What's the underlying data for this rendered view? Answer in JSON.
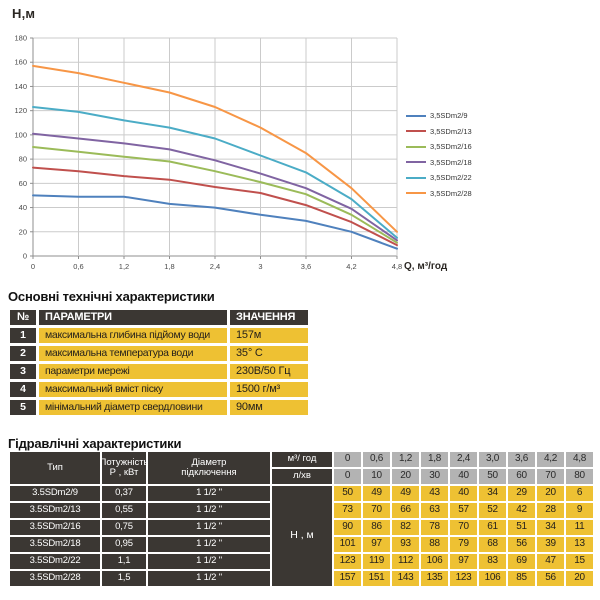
{
  "page": {
    "background": "#ffffff"
  },
  "chart": {
    "y_axis_title": "Н,м",
    "x_axis_title": "Q,  м³/год",
    "series_colors": [
      "#4F81BD",
      "#C0504D",
      "#9BBB59",
      "#8064A2",
      "#4BACC6",
      "#F79646"
    ],
    "grid_color": "#cbcbcb",
    "axis_color": "#8f8f8f"
  },
  "chart_data": {
    "type": "line",
    "title": "",
    "xlabel": "Q,  м³/год",
    "ylabel": "Н,м",
    "grid": true,
    "legend_position": "right",
    "xlim": [
      0,
      4.8
    ],
    "ylim": [
      0,
      180
    ],
    "x": [
      0,
      0.6,
      1.2,
      1.8,
      2.4,
      3.0,
      3.6,
      4.2,
      4.8
    ],
    "x_tick_labels": [
      "0",
      "0,6",
      "1,2",
      "1,8",
      "2,4",
      "3",
      "3,6",
      "4,2",
      "4,8"
    ],
    "y_ticks": [
      0,
      20,
      40,
      60,
      80,
      100,
      120,
      140,
      160,
      180
    ],
    "series": [
      {
        "name": "3,5SDm2/9",
        "values": [
          50,
          49,
          49,
          43,
          40,
          34,
          29,
          20,
          6
        ]
      },
      {
        "name": "3,5SDm2/13",
        "values": [
          73,
          70,
          66,
          63,
          57,
          52,
          42,
          28,
          9
        ]
      },
      {
        "name": "3,5SDm2/16",
        "values": [
          90,
          86,
          82,
          78,
          70,
          61,
          51,
          34,
          11
        ]
      },
      {
        "name": "3,5SDm2/18",
        "values": [
          101,
          97,
          93,
          88,
          79,
          68,
          56,
          39,
          13
        ]
      },
      {
        "name": "3,5SDm2/22",
        "values": [
          123,
          119,
          112,
          106,
          97,
          83,
          69,
          47,
          15
        ]
      },
      {
        "name": "3,5SDm2/28",
        "values": [
          157,
          151,
          143,
          135,
          123,
          106,
          85,
          56,
          20
        ]
      }
    ]
  },
  "tech_table": {
    "title": "Основні технічні характеристики",
    "headers": [
      "№",
      "ПАРАМЕТРИ",
      "ЗНАЧЕННЯ"
    ],
    "rows": [
      {
        "num": "1",
        "param": "максимальна глибина підйому води",
        "value": "157м"
      },
      {
        "num": "2",
        "param": "максимальна температура води",
        "value": "35° С"
      },
      {
        "num": "3",
        "param": "параметри мережі",
        "value": "230В/50 Гц"
      },
      {
        "num": "4",
        "param": "максимальний вміст піску",
        "value": "1500 г/м³"
      },
      {
        "num": "5",
        "param": "мінімальний діаметр свердловини",
        "value": "90мм"
      }
    ]
  },
  "hydraulic_table": {
    "title": "Гідравлічні характеристики",
    "col_headers": {
      "type": "Тип",
      "power": "Потужність\nР , кВт",
      "diameter": "Діаметр\nпідключення",
      "flow_m3": "м³/ год",
      "flow_lmin": "л/хв",
      "head_unit": "Н , м"
    },
    "flow_m3_values": [
      "0",
      "0,6",
      "1,2",
      "1,8",
      "2,4",
      "3,0",
      "3,6",
      "4,2",
      "4,8"
    ],
    "flow_lmin_values": [
      "0",
      "10",
      "20",
      "30",
      "40",
      "50",
      "60",
      "70",
      "80"
    ],
    "rows": [
      {
        "type": "3.5SDm2/9",
        "power": "0,37",
        "diameter": "1 1/2 \"",
        "heads": [
          50,
          49,
          49,
          43,
          40,
          34,
          29,
          20,
          6
        ]
      },
      {
        "type": "3.5SDm2/13",
        "power": "0,55",
        "diameter": "1 1/2 \"",
        "heads": [
          73,
          70,
          66,
          63,
          57,
          52,
          42,
          28,
          9
        ]
      },
      {
        "type": "3.5SDm2/16",
        "power": "0,75",
        "diameter": "1 1/2 \"",
        "heads": [
          90,
          86,
          82,
          78,
          70,
          61,
          51,
          34,
          11
        ]
      },
      {
        "type": "3.5SDm2/18",
        "power": "0,95",
        "diameter": "1 1/2 \"",
        "heads": [
          101,
          97,
          93,
          88,
          79,
          68,
          56,
          39,
          13
        ]
      },
      {
        "type": "3.5SDm2/22",
        "power": "1,1",
        "diameter": "1 1/2 \"",
        "heads": [
          123,
          119,
          112,
          106,
          97,
          83,
          69,
          47,
          15
        ]
      },
      {
        "type": "3.5SDm2/28",
        "power": "1,5",
        "diameter": "1 1/2 \"",
        "heads": [
          157,
          151,
          143,
          135,
          123,
          106,
          85,
          56,
          20
        ]
      }
    ]
  },
  "colors": {
    "yellow": "#EEC133",
    "dark": "#3B3733",
    "gray": "#B3B3B3"
  }
}
